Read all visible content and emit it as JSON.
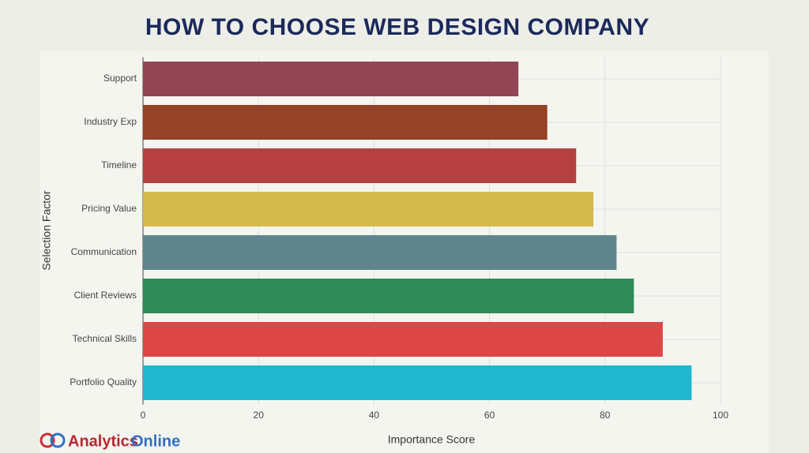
{
  "chart_data": {
    "type": "hbar",
    "title": "HOW TO CHOOSE WEB DESIGN COMPANY",
    "categories": [
      "Support",
      "Industry Exp",
      "Timeline",
      "Pricing Value",
      "Communication",
      "Client Reviews",
      "Technical Skills",
      "Portfolio Quality"
    ],
    "values": [
      65,
      70,
      75,
      78,
      82,
      85,
      90,
      95
    ],
    "colors": [
      "#934555",
      "#954226",
      "#b5403f",
      "#d4b94d",
      "#5e868c",
      "#2e8b57",
      "#dd4646",
      "#20b8cf"
    ],
    "xlabel": "Importance Score",
    "ylabel": "Selection Factor",
    "xlim": [
      0,
      100
    ],
    "xticks": [
      0,
      20,
      40,
      60,
      80,
      100
    ],
    "grid": true
  },
  "brand": [
    "Analytics",
    "Online"
  ]
}
